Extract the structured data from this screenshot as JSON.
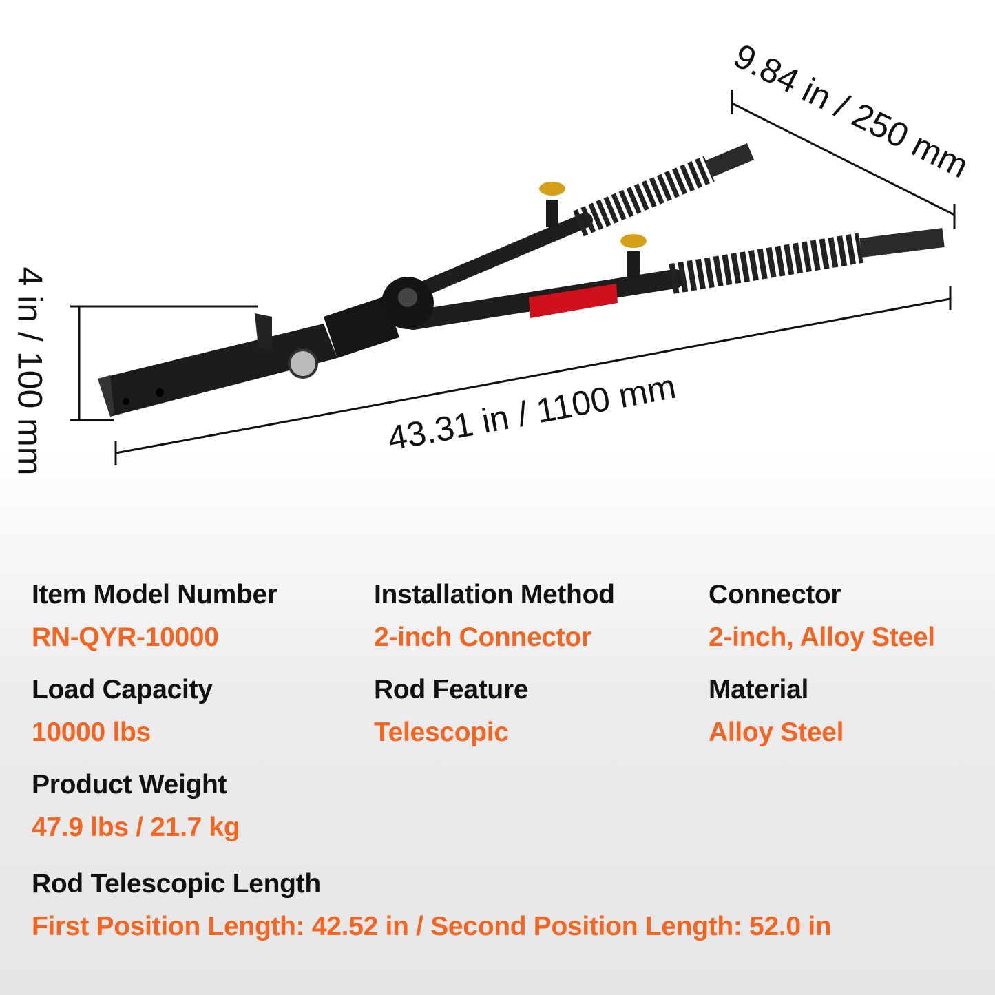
{
  "dimensions": {
    "length": "43.31 in / 1100 mm",
    "width": "9.84 in / 250 mm",
    "height": "4 in / 100 mm"
  },
  "colors": {
    "label": "#111111",
    "value": "#f26522",
    "reflector": "#d0101a",
    "knob": "#d4a017"
  },
  "specs": [
    {
      "label": "Item Model Number",
      "value": "RN-QYR-10000"
    },
    {
      "label": "Installation Method",
      "value": "2-inch Connector"
    },
    {
      "label": "Connector",
      "value": "2-inch, Alloy Steel"
    },
    {
      "label": "Load Capacity",
      "value": "10000 lbs"
    },
    {
      "label": "Rod Feature",
      "value": "Telescopic"
    },
    {
      "label": "Material",
      "value": "Alloy Steel"
    },
    {
      "label": "Product Weight",
      "value": "47.9 lbs / 21.7 kg"
    },
    {
      "label": "Rod Telescopic Length",
      "value": "First Position Length: 42.52 in / Second Position Length: 52.0 in"
    }
  ]
}
